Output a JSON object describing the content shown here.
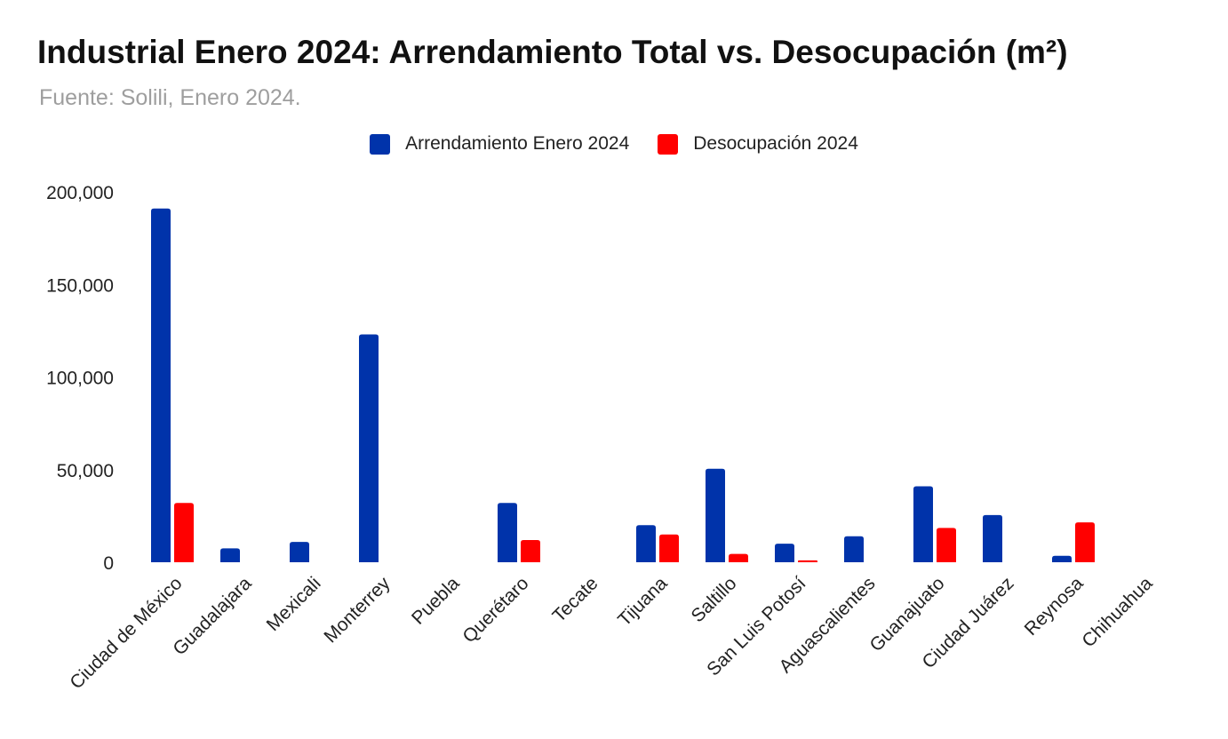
{
  "chart_data": {
    "type": "bar",
    "title": "Industrial Enero 2024: Arrendamiento Total vs. Desocupación (m²)",
    "subtitle": "Fuente: Solili, Enero 2024.",
    "xlabel": "",
    "ylabel": "",
    "ylim": [
      0,
      200000
    ],
    "yticks": [
      "0",
      "50,000",
      "100,000",
      "150,000",
      "200,000"
    ],
    "ytick_values": [
      0,
      50000,
      100000,
      150000,
      200000
    ],
    "grid": false,
    "legend_position": "top-center",
    "categories": [
      "Ciudad de México",
      "Guadalajara",
      "Mexicali",
      "Monterrey",
      "Puebla",
      "Querétaro",
      "Tecate",
      "Tijuana",
      "Saltillo",
      "San Luis Potosí",
      "Aguascalientes",
      "Guanajuato",
      "Ciudad Juárez",
      "Reynosa",
      "Chihuahua"
    ],
    "series": [
      {
        "name": "Arrendamiento Enero 2024",
        "color": "#0033aa",
        "values": [
          191000,
          7500,
          11000,
          123000,
          0,
          32000,
          0,
          20000,
          50500,
          10000,
          14000,
          41000,
          25500,
          3500,
          0
        ]
      },
      {
        "name": "Desocupación 2024",
        "color": "#ff0000",
        "values": [
          32000,
          0,
          0,
          0,
          0,
          12000,
          0,
          15000,
          4500,
          1000,
          0,
          18500,
          0,
          21500,
          0
        ]
      }
    ]
  }
}
